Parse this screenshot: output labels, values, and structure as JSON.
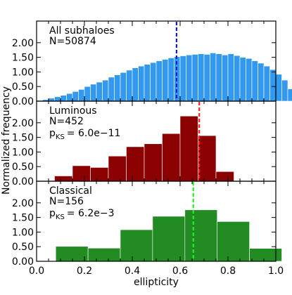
{
  "chart_data": {
    "type": "bar",
    "xlabel": "ellipticity",
    "ylabel": "Normalized frequency",
    "xlim": [
      0.0,
      1.0
    ],
    "xticks": [
      "0.0",
      "0.2",
      "0.4",
      "0.6",
      "0.8",
      "1.0"
    ],
    "yticks": [
      "0.00",
      "0.50",
      "1.00",
      "1.50",
      "2.00"
    ],
    "ylim": [
      0.0,
      2.5
    ],
    "grid": false,
    "panels": [
      {
        "name": "all-subhaloes",
        "label": "All subhaloes",
        "n_label": "N=50874",
        "p_label": "",
        "p_value": "",
        "color": "#3399ee",
        "median_color": "#1a1acc",
        "median": 0.585,
        "bin_width": 0.025,
        "bin_start": 0.025,
        "values": [
          0.05,
          0.1,
          0.15,
          0.2,
          0.26,
          0.33,
          0.4,
          0.5,
          0.58,
          0.65,
          0.72,
          0.82,
          0.9,
          0.98,
          1.06,
          1.14,
          1.2,
          1.26,
          1.32,
          1.38,
          1.43,
          1.48,
          1.52,
          1.55,
          1.58,
          1.6,
          1.62,
          1.6,
          1.65,
          1.62,
          1.58,
          1.62,
          1.56,
          1.5,
          1.46,
          1.38,
          1.3,
          1.2,
          1.08,
          0.92,
          0.72,
          0.42,
          0.1
        ]
      },
      {
        "name": "luminous",
        "label": "Luminous",
        "n_label": "N=452",
        "p_label": "KS",
        "p_value": "= 6.0e−11",
        "color": "#8b0000",
        "median_color": "#ff2222",
        "median": 0.68,
        "bin_width": 0.075,
        "bin_start": 0.075,
        "values": [
          0.18,
          0.53,
          0.47,
          0.86,
          1.18,
          1.28,
          1.63,
          2.23,
          1.56,
          0.33
        ]
      },
      {
        "name": "classical",
        "label": "Classical",
        "n_label": "N=156",
        "p_label": "KS",
        "p_value": "= 6.2e−3",
        "color": "#228b22",
        "median_color": "#22ee22",
        "median": 0.655,
        "bin_width": 0.135,
        "bin_start": 0.08,
        "values": [
          0.51,
          0.45,
          1.08,
          1.54,
          1.76,
          1.36,
          0.44
        ]
      }
    ]
  }
}
